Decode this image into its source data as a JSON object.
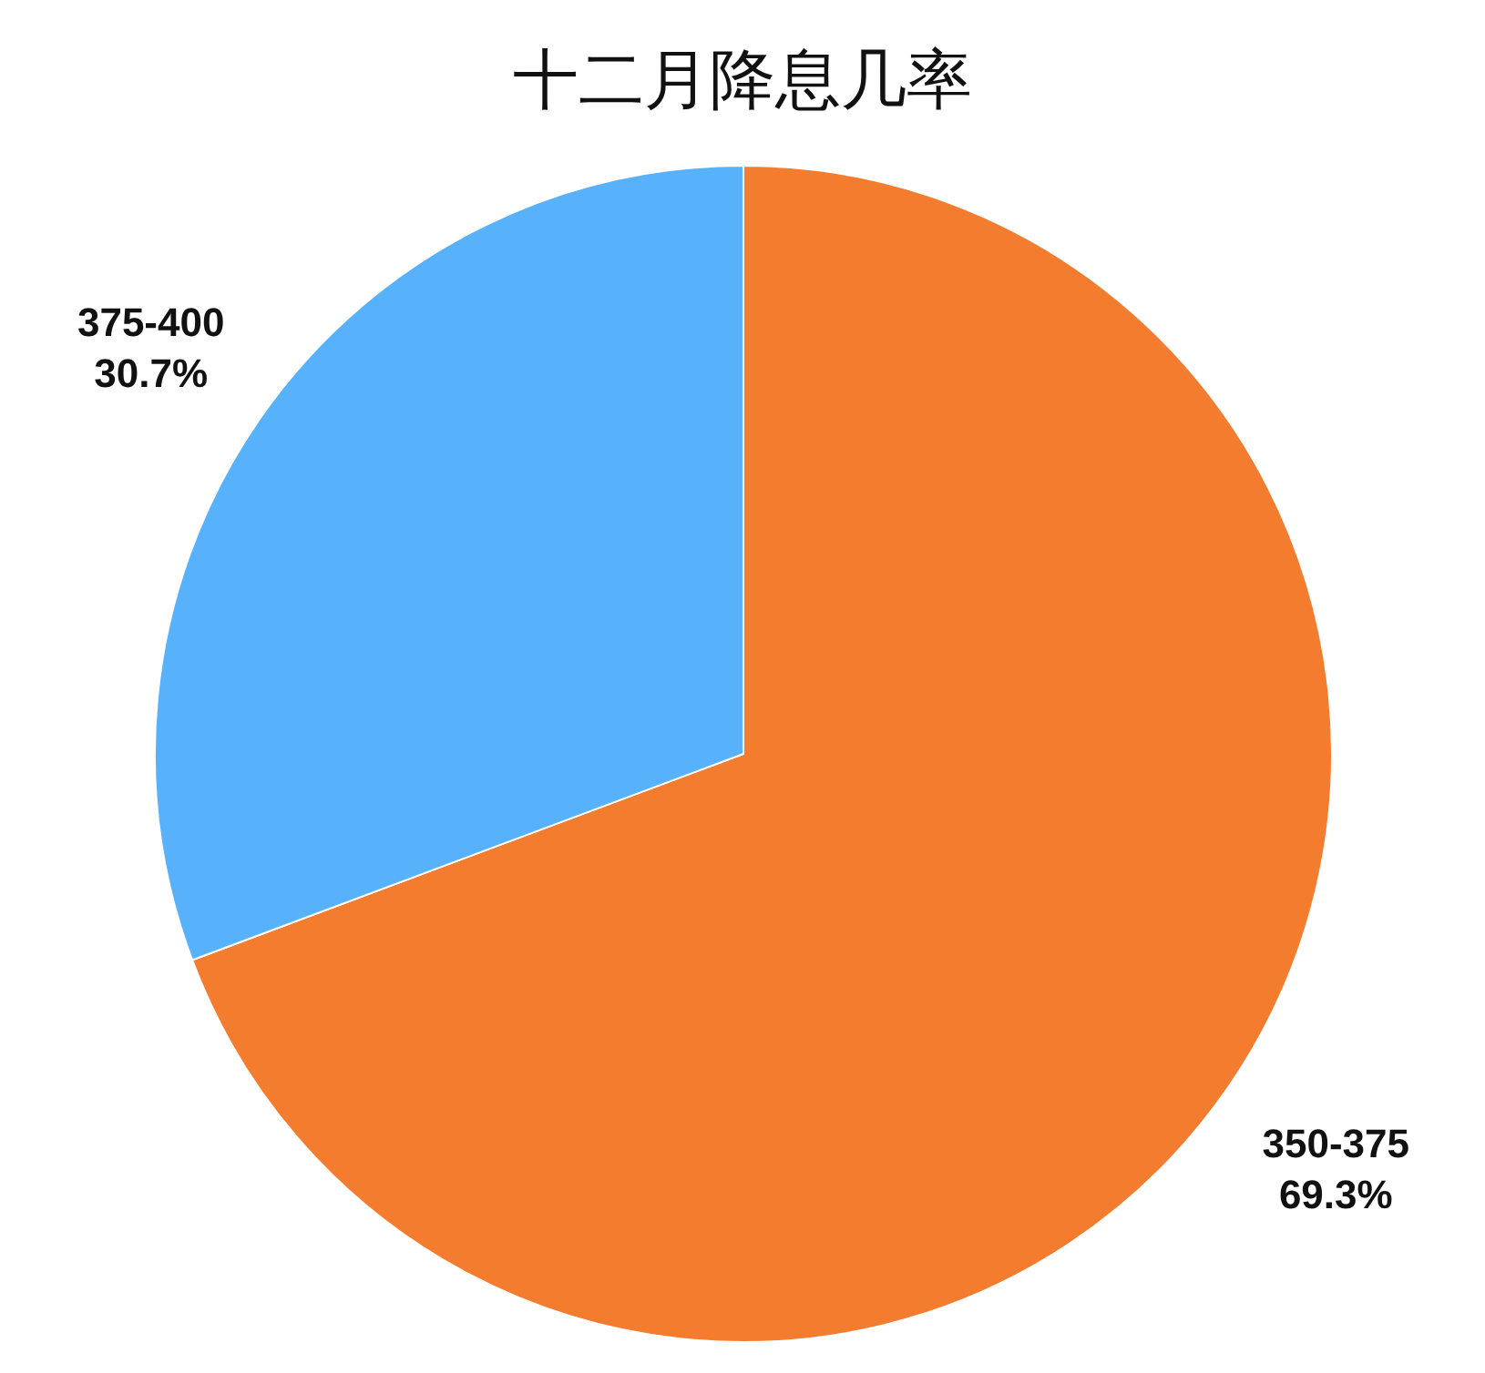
{
  "chart_data": {
    "type": "pie",
    "title": "十二月降息几率",
    "categories": [
      "350-375",
      "375-400"
    ],
    "values": [
      69.3,
      30.7
    ],
    "colors": [
      "#f47c2f",
      "#57b1fb"
    ],
    "value_labels": [
      "69.3%",
      "30.7%"
    ]
  }
}
